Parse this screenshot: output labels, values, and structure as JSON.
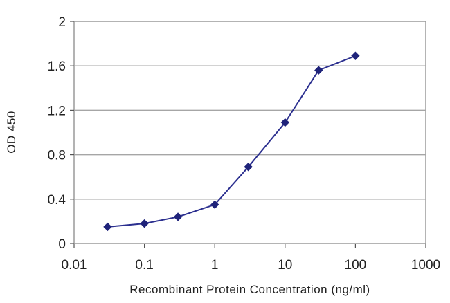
{
  "chart_data": {
    "type": "line",
    "title": "",
    "xlabel": "Recombinant Protein Concentration (ng/ml)",
    "ylabel": "OD 450",
    "xscale": "log",
    "xlim": [
      0.01,
      1000
    ],
    "ylim": [
      0,
      2
    ],
    "x_tick_labels": [
      "0.01",
      "0.1",
      "1",
      "10",
      "100",
      "1000"
    ],
    "x_tick_values": [
      0.01,
      0.1,
      1,
      10,
      100,
      1000
    ],
    "y_tick_labels": [
      "0",
      "0.4",
      "0.8",
      "1.2",
      "1.6",
      "2"
    ],
    "y_tick_values": [
      0,
      0.4,
      0.8,
      1.2,
      1.6,
      2
    ],
    "grid": "horizontal",
    "legend": "none",
    "series": [
      {
        "x": [
          0.03,
          0.1,
          0.3,
          1,
          3,
          10,
          30,
          100
        ],
        "y": [
          0.15,
          0.18,
          0.24,
          0.35,
          0.69,
          1.09,
          1.56,
          1.69
        ]
      }
    ],
    "colors": {
      "line": "#2b2f8f",
      "marker": "#1f237a",
      "grid": "#a6a6a6",
      "frame": "#9a9a9a"
    }
  }
}
